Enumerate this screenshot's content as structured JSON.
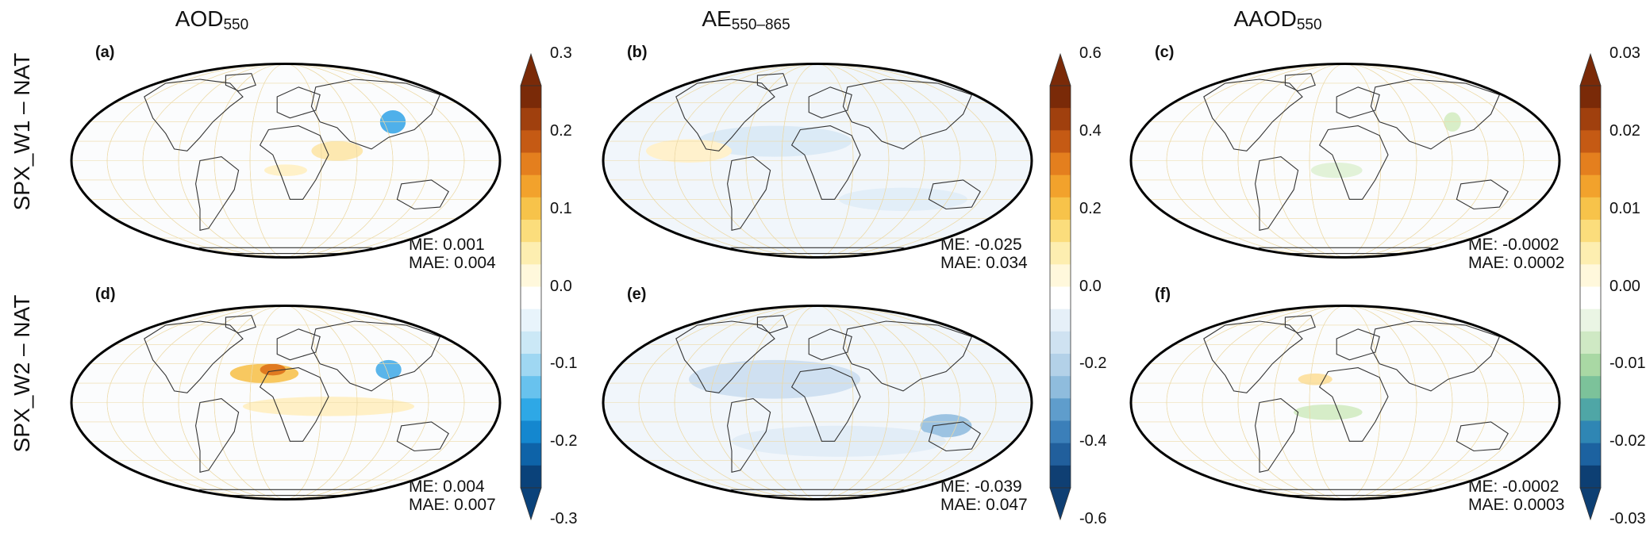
{
  "columns": [
    {
      "main": "AOD",
      "sub": "550"
    },
    {
      "main": "AE",
      "sub": "550–865"
    },
    {
      "main": "AAOD",
      "sub": "550"
    }
  ],
  "rows": [
    "SPX_W1 – NAT",
    "SPX_W2 – NAT"
  ],
  "panels": [
    {
      "letter": "(a)",
      "me": "ME: 0.001",
      "mae": "MAE: 0.004"
    },
    {
      "letter": "(b)",
      "me": "ME: -0.025",
      "mae": "MAE: 0.034"
    },
    {
      "letter": "(c)",
      "me": "ME: -0.0002",
      "mae": "MAE: 0.0002"
    },
    {
      "letter": "(d)",
      "me": "ME: 0.004",
      "mae": "MAE: 0.007"
    },
    {
      "letter": "(e)",
      "me": "ME: -0.039",
      "mae": "MAE: 0.047"
    },
    {
      "letter": "(f)",
      "me": "ME: -0.0002",
      "mae": "MAE: 0.0003"
    }
  ],
  "colorbars": [
    {
      "ticks": [
        "0.3",
        "0.2",
        "0.1",
        "0.0",
        "-0.1",
        "-0.2",
        "-0.3"
      ],
      "top": [
        "#7a2a08",
        "#a0400e",
        "#c55a14",
        "#e47f1e",
        "#f2a22c",
        "#f7c34a",
        "#fbdd7c",
        "#fdeeb0",
        "#fff8dc",
        "#ffffff",
        "#e8f4fb",
        "#cbe8f6",
        "#9fd7f2",
        "#68c2ee",
        "#2ea8e6",
        "#1487cf",
        "#0e63a8",
        "#0a427a"
      ]
    },
    {
      "ticks": [
        "0.6",
        "0.4",
        "0.2",
        "0.0",
        "-0.2",
        "-0.4",
        "-0.6"
      ],
      "top": [
        "#7a2a08",
        "#a0400e",
        "#c55a14",
        "#e47f1e",
        "#f2a22c",
        "#f7c34a",
        "#fbdd7c",
        "#fdeeb0",
        "#fff8dc",
        "#ffffff",
        "#e6f0f8",
        "#cfe2f1",
        "#b3d1e8",
        "#8fbcdd",
        "#5f9dcc",
        "#3b7fb9",
        "#215f9c",
        "#0f3f73"
      ]
    },
    {
      "ticks": [
        "0.03",
        "0.02",
        "0.01",
        "0.00",
        "-0.01",
        "-0.02",
        "-0.03"
      ],
      "top": [
        "#7a2a08",
        "#a0400e",
        "#c55a14",
        "#e47f1e",
        "#f2a22c",
        "#f7c34a",
        "#fbdd7c",
        "#fdeeb0",
        "#fff8dc",
        "#ffffff",
        "#eaf5e4",
        "#cfe9c4",
        "#a9d8a4",
        "#7cc29a",
        "#4fa6a6",
        "#2f86b4",
        "#1c62a0",
        "#0d3f73"
      ]
    }
  ]
}
